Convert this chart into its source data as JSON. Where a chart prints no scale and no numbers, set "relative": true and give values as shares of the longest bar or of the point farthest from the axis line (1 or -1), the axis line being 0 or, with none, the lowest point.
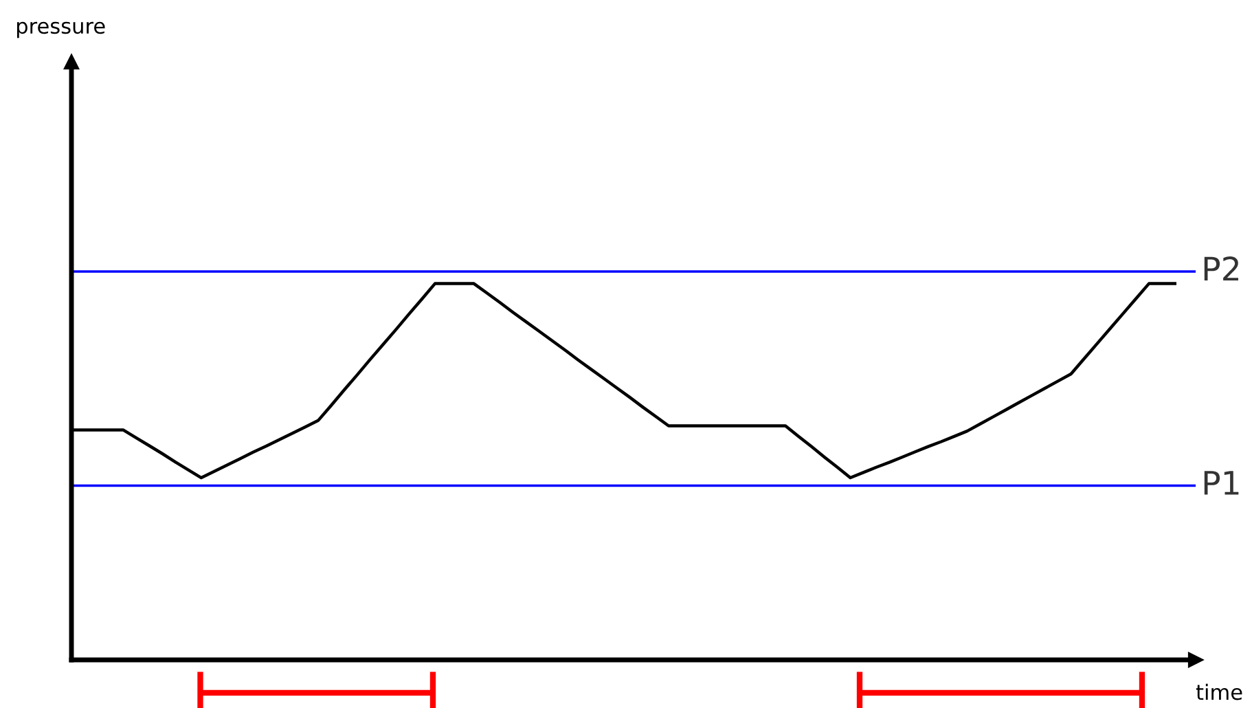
{
  "chart_data": {
    "type": "line",
    "relative": true,
    "xlabel": "time",
    "annotations": [
      "pressure"
    ],
    "categories": [
      null,
      null,
      null,
      null,
      null,
      null,
      null,
      null,
      null,
      null,
      null,
      null,
      null,
      null,
      null,
      null,
      null,
      null,
      null,
      null,
      null,
      null,
      null,
      null,
      null,
      null,
      null,
      null,
      null,
      null,
      null,
      null,
      null,
      null,
      null,
      null,
      null,
      null,
      null,
      null,
      null,
      null,
      null,
      null,
      null,
      null,
      null,
      null,
      null,
      null,
      null,
      null,
      null,
      null,
      null,
      null,
      null,
      null,
      null,
      null,
      null,
      null,
      null,
      null,
      null,
      null,
      null,
      null,
      null,
      null,
      null,
      null,
      null,
      null,
      null,
      null,
      null,
      null,
      null,
      null,
      null,
      null,
      null,
      null,
      null,
      null
    ],
    "series": [
      {
        "color": "#000000",
        "values": [
          0.611,
          0.611,
          0.611,
          0.611,
          0.611,
          0.59,
          0.569,
          0.548,
          0.526,
          0.505,
          0.484,
          0.501,
          0.518,
          0.535,
          0.552,
          0.568,
          0.585,
          0.602,
          0.619,
          0.636,
          0.676,
          0.717,
          0.757,
          0.798,
          0.838,
          0.878,
          0.919,
          0.959,
          1,
          1,
          1,
          1,
          0.975,
          0.95,
          0.924,
          0.899,
          0.874,
          0.849,
          0.824,
          0.798,
          0.773,
          0.748,
          0.723,
          0.698,
          0.672,
          0.647,
          0.622,
          0.622,
          0.622,
          0.622,
          0.622,
          0.622,
          0.622,
          0.622,
          0.622,
          0.622,
          0.594,
          0.567,
          0.539,
          0.512,
          0.484,
          0.498,
          0.512,
          0.525,
          0.539,
          0.553,
          0.567,
          0.58,
          0.594,
          0.608,
          0.627,
          0.646,
          0.665,
          0.684,
          0.703,
          0.722,
          0.741,
          0.76,
          0.8,
          0.84,
          0.88,
          0.92,
          0.96,
          1,
          1,
          1
        ]
      }
    ],
    "marker": "none",
    "line_style": "solid",
    "ref_lines": [
      {
        "axis": "y",
        "value": 0.463,
        "label": "P1",
        "color": "#0000ff"
      },
      {
        "axis": "y",
        "value": 1.032,
        "label": "P2",
        "color": "#0000ff"
      }
    ]
  }
}
